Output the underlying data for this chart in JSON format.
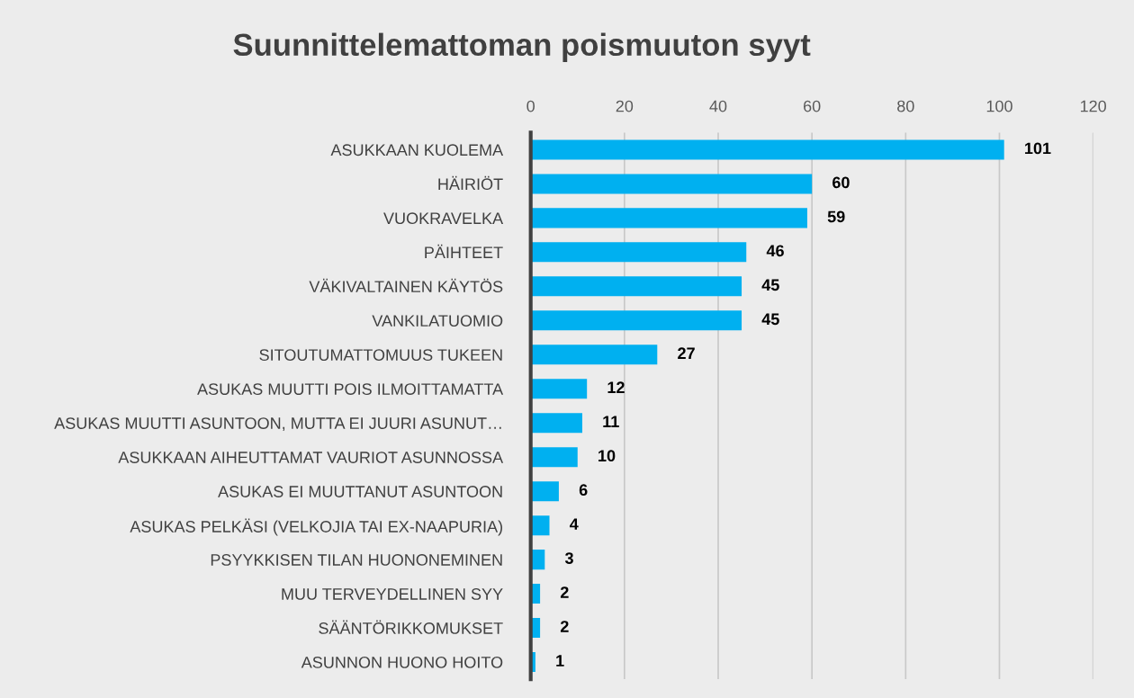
{
  "chart_data": {
    "type": "bar",
    "orientation": "horizontal",
    "title": "Suunnittelemattoman poismuuton syyt",
    "categories": [
      "ASUKKAAN KUOLEMA",
      "HÄIRIÖT",
      "VUOKRAVELKA",
      "PÄIHTEET",
      "VÄKIVALTAINEN KÄYTÖS",
      "VANKILATUOMIO",
      "SITOUTUMATTOMUUS TUKEEN",
      "ASUKAS MUUTTI POIS ILMOITTAMATTA",
      "ASUKAS MUUTTI ASUNTOON, MUTTA EI JUURI ASUNUT…",
      "ASUKKAAN AIHEUTTAMAT VAURIOT ASUNNOSSA",
      "ASUKAS EI MUUTTANUT ASUNTOON",
      "ASUKAS PELKÄSI (VELKOJIA TAI EX-NAAPURIA)",
      "PSYYKKISEN TILAN HUONONEMINEN",
      "MUU TERVEYDELLINEN SYY",
      "SÄÄNTÖRIKKOMUKSET",
      "ASUNNON HUONO HOITO"
    ],
    "values": [
      101,
      60,
      59,
      46,
      45,
      45,
      27,
      12,
      11,
      10,
      6,
      4,
      3,
      2,
      2,
      1
    ],
    "color": "#00b0f0",
    "xlim": [
      0,
      120
    ],
    "xticks": [
      0,
      20,
      40,
      60,
      80,
      100,
      120
    ],
    "grid": "x",
    "data_labels": true
  }
}
